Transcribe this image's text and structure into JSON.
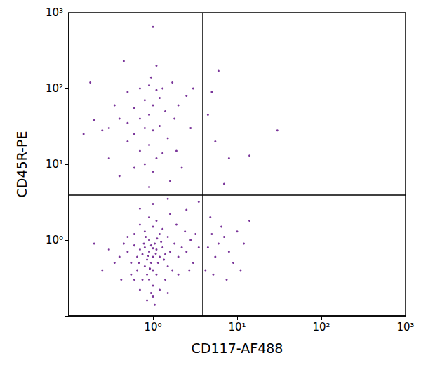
{
  "chart_data": {
    "type": "scatter",
    "log": true,
    "grid": false,
    "color": "#6b1f8f",
    "xlabel": "CD117-AF488",
    "ylabel": "CD45R-PE",
    "xlim": [
      0.1,
      1000
    ],
    "ylim": [
      0.1,
      1000
    ],
    "xticks": [
      {
        "value": 1,
        "label": "10⁰"
      },
      {
        "value": 10,
        "label": "10¹"
      },
      {
        "value": 100,
        "label": "10²"
      },
      {
        "value": 1000,
        "label": "10³"
      }
    ],
    "yticks": [
      {
        "value": 1,
        "label": "10⁰"
      },
      {
        "value": 10,
        "label": "10¹"
      },
      {
        "value": 100,
        "label": "10²"
      },
      {
        "value": 1000,
        "label": "10³"
      }
    ],
    "quadrant_lines": {
      "x": 3.9,
      "y": 3.9
    },
    "x": [
      0.9,
      1.0,
      0.8,
      1.1,
      0.95,
      0.85,
      1.05,
      0.75,
      1.2,
      0.7,
      0.9,
      1.0,
      0.8,
      1.15,
      1.3,
      0.65,
      0.6,
      1.4,
      0.9,
      1.0,
      0.95,
      1.1,
      0.85,
      1.6,
      1.8,
      2.0,
      2.2,
      2.5,
      2.8,
      3.0,
      0.5,
      0.45,
      0.4,
      0.55,
      0.3,
      0.6,
      0.8,
      1.0,
      1.2,
      1.5,
      0.7,
      1.1,
      1.3,
      0.9,
      1.5,
      1.7,
      2.0,
      0.75,
      0.65,
      0.55,
      1.0,
      1.2,
      0.85,
      1.05,
      0.7,
      1.4,
      2.4,
      3.2,
      1.9,
      0.5,
      0.35,
      0.2,
      0.25,
      0.42,
      1.6,
      2.7,
      3.5,
      0.95,
      1.0,
      0.88,
      1.08,
      0.78,
      0.92,
      1.25,
      1.35,
      0.68,
      1.12,
      0.82,
      0.6,
      1.5,
      4.5,
      5,
      5.5,
      6,
      7,
      8,
      9,
      4.2,
      5.2,
      6.5,
      10,
      12,
      14,
      4.8,
      7.5,
      11,
      0.5,
      0.7,
      0.9,
      1.1,
      1.3,
      0.8,
      1.0,
      0.6,
      1.2,
      0.9,
      0.7,
      1.4,
      0.5,
      0.3,
      0.4,
      0.25,
      0.6,
      0.8,
      1.0,
      1.2,
      0.2,
      0.15,
      0.5,
      0.7,
      0.9,
      1.1,
      0.8,
      1.0,
      0.6,
      1.3,
      1.5,
      1.8,
      2.0,
      2.5,
      3.0,
      1.7,
      0.95,
      0.45,
      1.0,
      0.3,
      0.4,
      0.9,
      1.6,
      2.2,
      0.18,
      0.35,
      1.1,
      2.8,
      1.9,
      5,
      6,
      4.5,
      30,
      14,
      7,
      5.5,
      8,
      1.0,
      1.5,
      0.7,
      2.5,
      3.5
    ],
    "values": [
      0.7,
      0.6,
      0.8,
      0.75,
      0.5,
      0.55,
      0.9,
      0.65,
      0.6,
      0.75,
      1.0,
      0.4,
      0.45,
      0.5,
      0.8,
      0.6,
      0.85,
      0.65,
      0.3,
      0.25,
      0.2,
      0.35,
      0.35,
      0.7,
      0.9,
      0.6,
      0.8,
      0.7,
      1.0,
      0.5,
      0.7,
      0.9,
      0.6,
      0.5,
      0.75,
      1.2,
      1.3,
      1.5,
      1.2,
      1.1,
      1.6,
      1.8,
      1.4,
      2.0,
      0.45,
      0.4,
      0.35,
      0.3,
      0.4,
      0.35,
      0.18,
      0.22,
      0.16,
      0.14,
      0.22,
      0.3,
      1.3,
      1.2,
      1.6,
      1.1,
      0.5,
      0.9,
      0.4,
      0.3,
      2.2,
      0.4,
      0.8,
      0.85,
      0.78,
      0.62,
      0.66,
      0.9,
      0.42,
      0.95,
      0.55,
      0.5,
      1.05,
      1.1,
      0.3,
      0.2,
      0.8,
      1.2,
      0.6,
      0.9,
      1.1,
      0.7,
      0.5,
      0.4,
      0.35,
      1.5,
      1.3,
      0.9,
      1.8,
      2.0,
      0.3,
      0.4,
      90,
      100,
      110,
      95,
      100,
      70,
      60,
      55,
      75,
      45,
      40,
      50,
      35,
      30,
      40,
      28,
      25,
      30,
      28,
      32,
      38,
      25,
      20,
      15,
      18,
      12,
      10,
      8,
      9,
      14,
      22,
      40,
      60,
      80,
      100,
      120,
      140,
      230,
      650,
      12,
      7,
      5,
      6,
      9,
      120,
      60,
      200,
      30,
      15,
      90,
      170,
      45,
      28,
      13,
      5.5,
      20,
      12,
      3,
      3.5,
      2.6,
      2.5,
      3.2
    ]
  }
}
